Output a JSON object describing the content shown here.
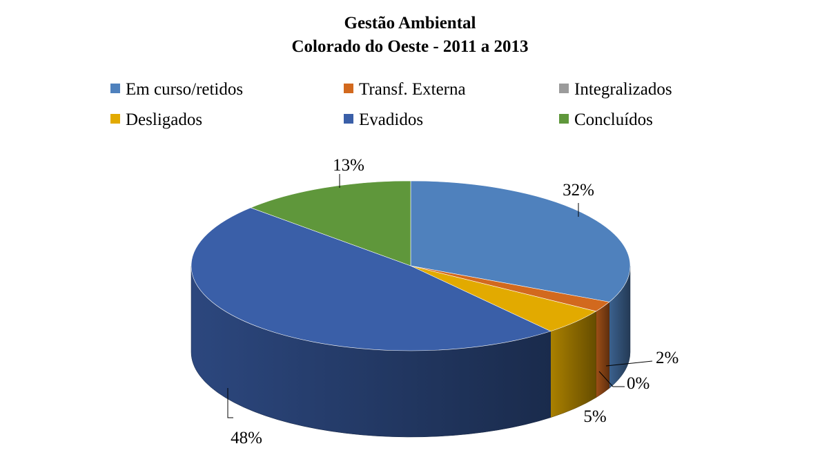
{
  "chart_data": {
    "type": "pie",
    "title": "Gestão Ambiental",
    "subtitle": "Colorado do Oeste - 2011 a 2013",
    "legend_placement": "top",
    "slices": [
      {
        "label": "Em curso/retidos",
        "value": 32,
        "value_label": "32%",
        "color": "#4F81BD"
      },
      {
        "label": "Transf. Externa",
        "value": 2,
        "value_label": "2%",
        "color": "#D2691E"
      },
      {
        "label": "Integralizados",
        "value": 0,
        "value_label": "0%",
        "color": "#9B9B9B"
      },
      {
        "label": "Desligados",
        "value": 5,
        "value_label": "5%",
        "color": "#E2AA00"
      },
      {
        "label": "Evadidos",
        "value": 48,
        "value_label": "48%",
        "color": "#3A5FA8"
      },
      {
        "label": "Concluídos",
        "value": 13,
        "value_label": "13%",
        "color": "#5F973B"
      }
    ]
  }
}
